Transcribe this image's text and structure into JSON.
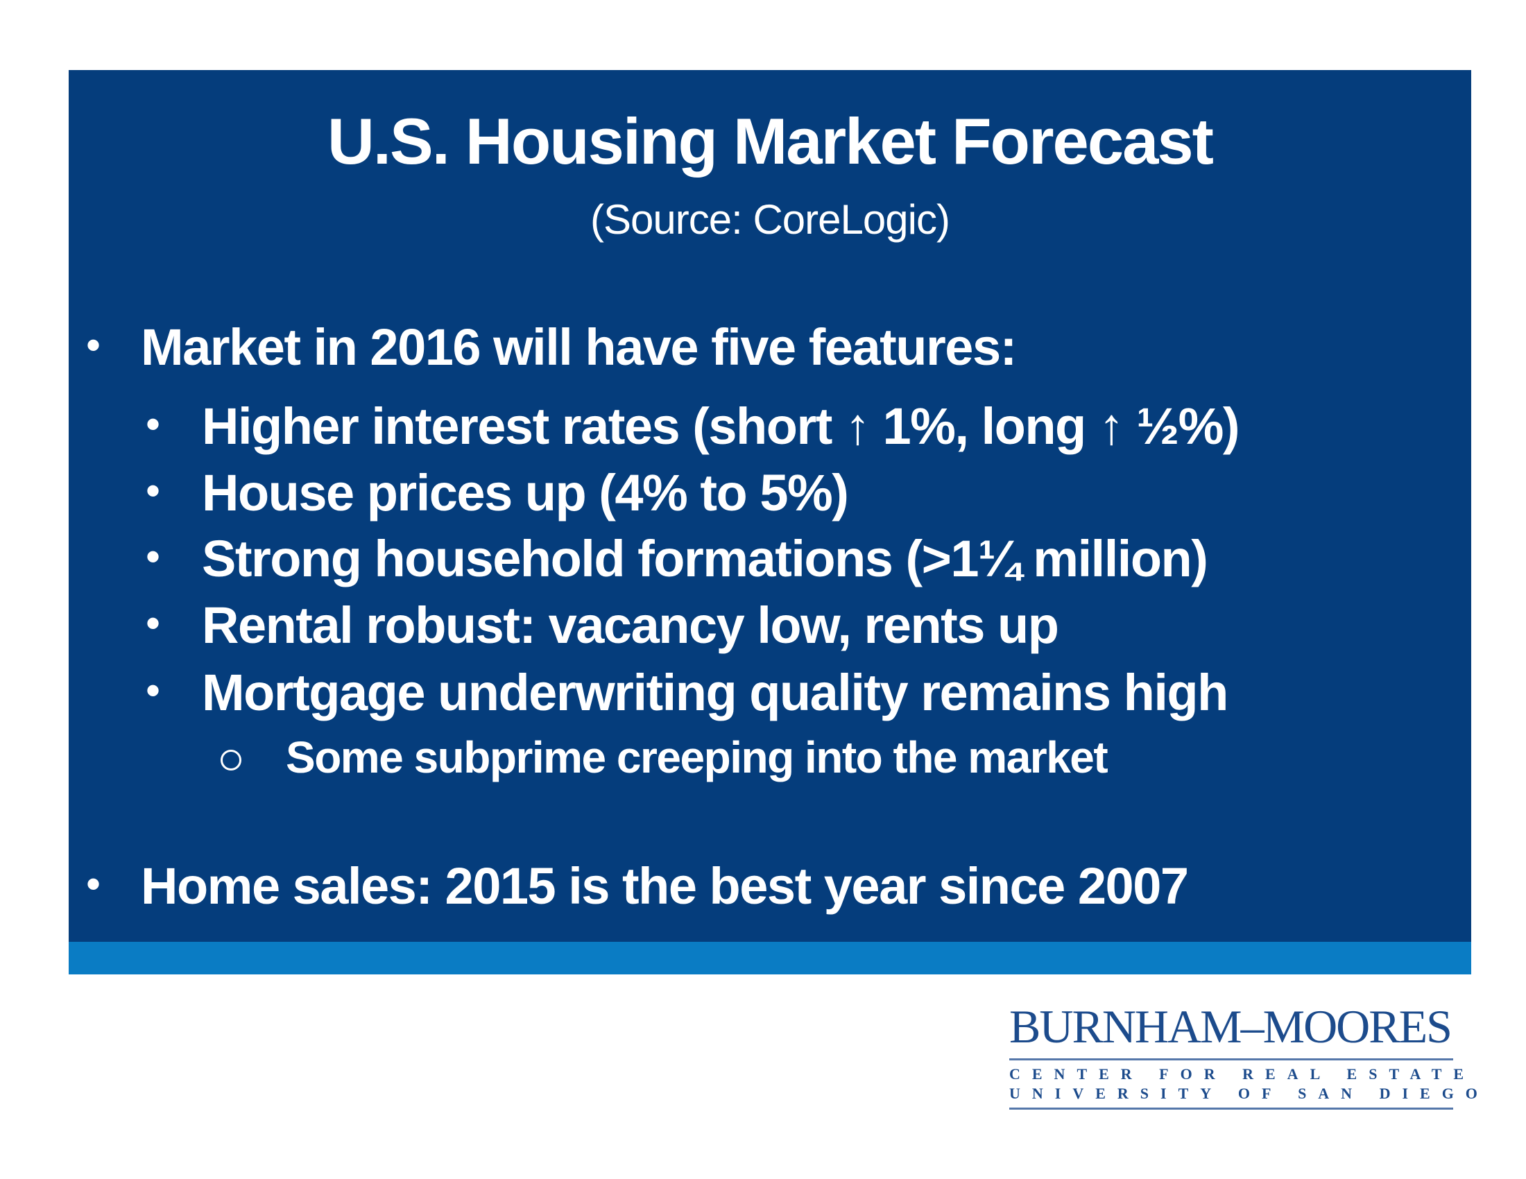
{
  "slide": {
    "title": "U.S. Housing Market Forecast",
    "subtitle": "(Source: CoreLogic)",
    "bullets": [
      {
        "text": "Market in 2016 will have five features:"
      },
      {
        "text": "Home sales: 2015 is the best year since 2007"
      }
    ],
    "features": [
      "Higher interest rates (short ↑ 1%, long ↑ ½%)",
      "House prices up (4% to 5%)",
      "Strong household formations (>1¼ million)",
      "Rental robust: vacancy low, rents up",
      "Mortgage underwriting quality remains high"
    ],
    "sub_feature": "Some subprime creeping into the market",
    "bullet_glyph": "•"
  },
  "logo": {
    "name": "BURNHAM–MOORES",
    "line1": "CENTER FOR REAL ESTATE",
    "line2": "UNIVERSITY OF SAN DIEGO"
  },
  "colors": {
    "panel": "#053d7c",
    "stripe": "#0a7cc4",
    "logo": "#1c4b8c"
  }
}
